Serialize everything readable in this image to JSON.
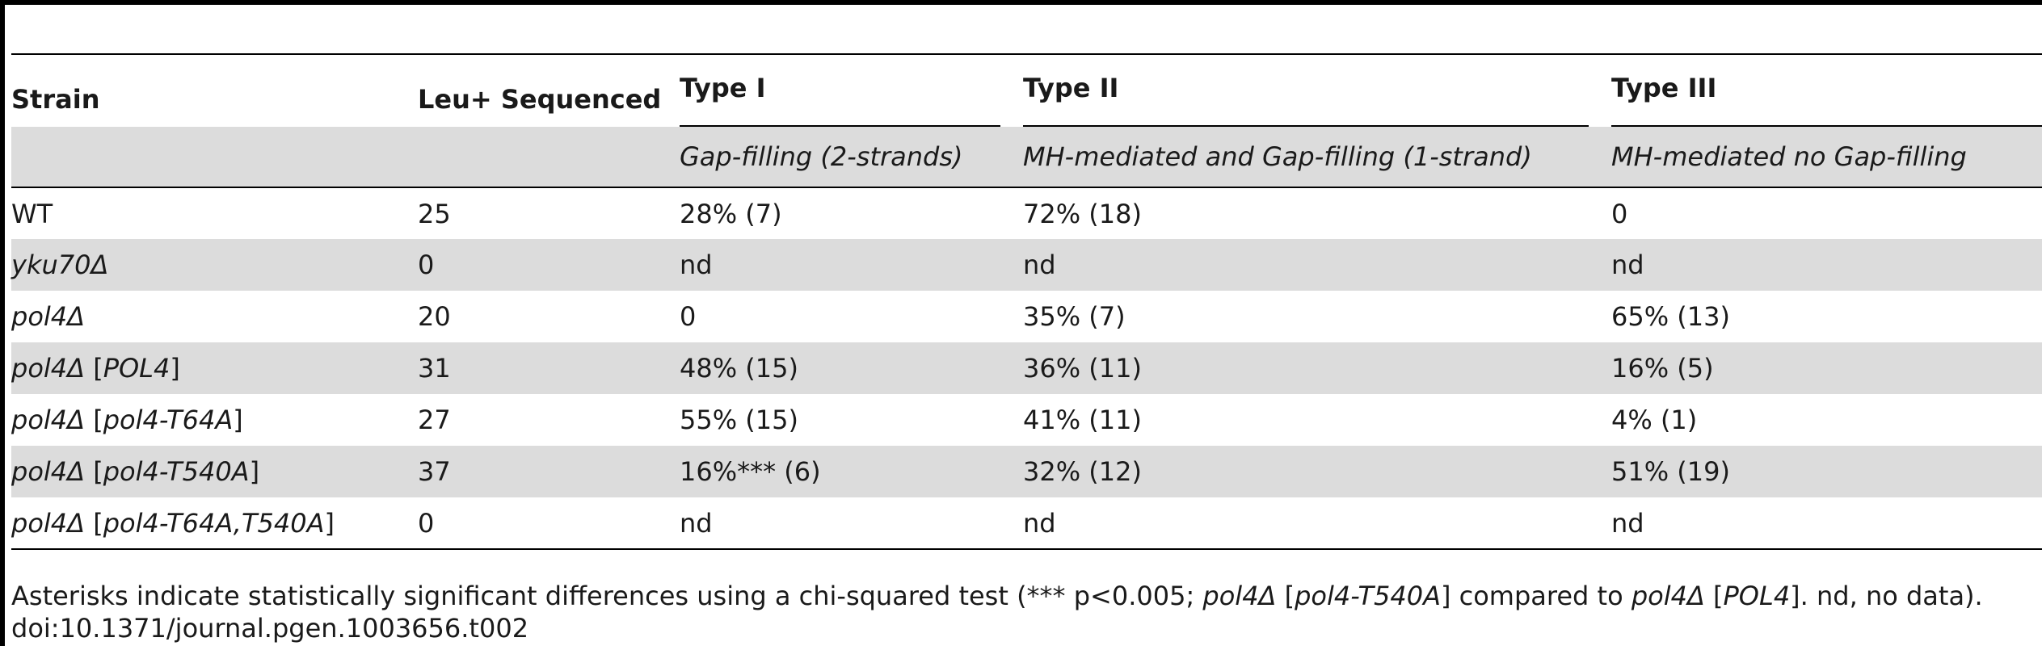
{
  "table": {
    "headers": {
      "strain": "Strain",
      "sequenced": "Leu+ Sequenced",
      "type1": "Type I",
      "type2": "Type II",
      "type3": "Type III"
    },
    "subheaders": {
      "type1": "Gap-filling (2-strands)",
      "type2": "MH-mediated and Gap-filling (1-strand)",
      "type3": "MH-mediated no Gap-filling"
    },
    "rows": [
      {
        "strain": "WT",
        "plasmid": "",
        "sequenced": "25",
        "type1": "28% (7)",
        "type2": "72% (18)",
        "type3": "0"
      },
      {
        "strain": "yku70Δ",
        "plasmid": "",
        "sequenced": "0",
        "type1": "nd",
        "type2": "nd",
        "type3": "nd"
      },
      {
        "strain": "pol4Δ",
        "plasmid": "",
        "sequenced": "20",
        "type1": "0",
        "type2": "35% (7)",
        "type3": "65% (13)"
      },
      {
        "strain": "pol4Δ",
        "plasmid": "POL4",
        "sequenced": "31",
        "type1": "48% (15)",
        "type2": "36% (11)",
        "type3": "16% (5)"
      },
      {
        "strain": "pol4Δ",
        "plasmid": "pol4-T64A",
        "sequenced": "27",
        "type1": "55% (15)",
        "type2": "41% (11)",
        "type3": "4% (1)"
      },
      {
        "strain": "pol4Δ",
        "plasmid": "pol4-T540A",
        "sequenced": "37",
        "type1": "16%*** (6)",
        "type2": "32% (12)",
        "type3": "51% (19)"
      },
      {
        "strain": "pol4Δ",
        "plasmid": "pol4-T64A,T540A",
        "sequenced": "0",
        "type1": "nd",
        "type2": "nd",
        "type3": "nd"
      }
    ]
  },
  "footnote": {
    "part1": "Asterisks indicate statistically significant differences using a chi-squared test (*** p<0.005; ",
    "italic1": "pol4Δ",
    "part2": " [",
    "italic2": "pol4-T540A",
    "part3": "] compared to ",
    "italic3": "pol4Δ",
    "part4": " [",
    "italic4": "POL4",
    "part5": "]. nd, no data)."
  },
  "doi": "doi:10.1371/journal.pgen.1003656.t002"
}
